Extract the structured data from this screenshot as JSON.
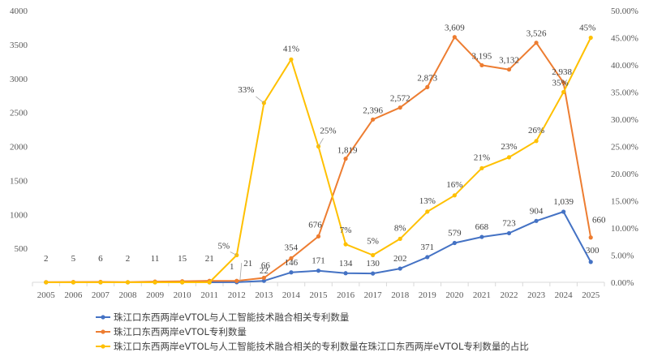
{
  "chart_data": {
    "type": "line",
    "categories": [
      "2005",
      "2006",
      "2007",
      "2008",
      "2009",
      "2010",
      "2011",
      "2012",
      "2013",
      "2014",
      "2015",
      "2016",
      "2017",
      "2018",
      "2019",
      "2020",
      "2021",
      "2022",
      "2023",
      "2024",
      "2025"
    ],
    "y_left": {
      "ylim": [
        0,
        4000
      ],
      "ticks": [
        "500",
        "1000",
        "1500",
        "2000",
        "2500",
        "3000",
        "3500",
        "4000"
      ],
      "tick_values": [
        500,
        1000,
        1500,
        2000,
        2500,
        3000,
        3500,
        4000
      ]
    },
    "y_right": {
      "ylim": [
        0,
        50
      ],
      "ticks": [
        "0.00%",
        "5.00%",
        "10.00%",
        "15.00%",
        "20.00%",
        "25.00%",
        "30.00%",
        "35.00%",
        "40.00%",
        "45.00%",
        "50.00%"
      ],
      "tick_values": [
        0,
        5,
        10,
        15,
        20,
        25,
        30,
        35,
        40,
        45,
        50
      ]
    },
    "series": [
      {
        "name": "珠江口东西两岸eVTOL与人工智能技术融合相关专利数量",
        "color": "#4472c4",
        "axis": "left",
        "values": [
          0,
          0,
          0,
          0,
          0,
          0,
          0,
          1,
          22,
          146,
          171,
          134,
          130,
          202,
          371,
          579,
          668,
          723,
          904,
          1039,
          300
        ],
        "labels": [
          "",
          "",
          "",
          "",
          "",
          "",
          "",
          "1",
          "22",
          "146",
          "171",
          "134",
          "130",
          "202",
          "371",
          "579",
          "668",
          "723",
          "904",
          "1,039",
          "300"
        ]
      },
      {
        "name": "珠江口东西两岸eVTOL专利数量",
        "color": "#ed7d31",
        "axis": "left",
        "values": [
          2,
          5,
          6,
          2,
          11,
          15,
          21,
          21,
          66,
          354,
          676,
          1819,
          2396,
          2572,
          2873,
          3609,
          3195,
          3132,
          3526,
          2938,
          660
        ],
        "labels": [
          "2",
          "5",
          "6",
          "2",
          "11",
          "15",
          "21",
          "21",
          "66",
          "354",
          "676",
          "1,819",
          "2,396",
          "2,572",
          "2,873",
          "3,609",
          "3,195",
          "3,132",
          "3,526",
          "2,938",
          "660"
        ]
      },
      {
        "name": "珠江口东西两岸eVTOL与人工智能技术融合相关的专利数量在珠江口东西两岸eVTOL专利数量的占比",
        "color": "#ffc000",
        "axis": "right",
        "values": [
          0,
          0,
          0,
          0,
          0,
          0,
          0,
          5,
          33,
          41,
          25,
          7,
          5,
          8,
          13,
          16,
          21,
          23,
          26,
          35,
          45
        ],
        "labels": [
          "",
          "",
          "",
          "",
          "",
          "",
          "",
          "5%",
          "33%",
          "41%",
          "25%",
          "7%",
          "5%",
          "8%",
          "13%",
          "16%",
          "21%",
          "23%",
          "26%",
          "35%",
          "45%"
        ]
      }
    ]
  }
}
